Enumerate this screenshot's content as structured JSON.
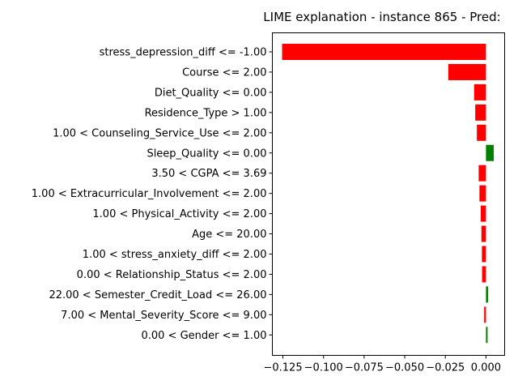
{
  "chart_data": {
    "type": "bar",
    "orientation": "horizontal",
    "title": "LIME explanation - instance 865 - Pred:",
    "xlabel": "",
    "ylabel": "",
    "xlim": [
      -0.1315,
      0.0115
    ],
    "xticks": [
      -0.125,
      -0.1,
      -0.075,
      -0.05,
      -0.025,
      0.0
    ],
    "xtick_labels": [
      "−0.125",
      "−0.100",
      "−0.075",
      "−0.050",
      "−0.025",
      "0.000"
    ],
    "grid": false,
    "colors": {
      "negative": "#ff0000",
      "positive": "#008000"
    },
    "categories": [
      "stress_depression_diff <= -1.00",
      "Course <= 2.00",
      "Diet_Quality <= 0.00",
      "Residence_Type > 1.00",
      "1.00 < Counseling_Service_Use <= 2.00",
      "Sleep_Quality <= 0.00",
      "3.50 < CGPA <= 3.69",
      "1.00 < Extracurricular_Involvement <= 2.00",
      "1.00 < Physical_Activity <= 2.00",
      "Age <= 20.00",
      "1.00 < stress_anxiety_diff <= 2.00",
      "0.00 < Relationship_Status <= 2.00",
      "22.00 < Semester_Credit_Load <= 26.00",
      "7.00 < Mental_Severity_Score <= 9.00",
      "0.00 < Gender <= 1.00"
    ],
    "values": [
      -0.1255,
      -0.0232,
      -0.0073,
      -0.0066,
      -0.0056,
      0.0048,
      -0.0045,
      -0.004,
      -0.0032,
      -0.0028,
      -0.0025,
      -0.0024,
      0.0013,
      -0.0011,
      0.001
    ]
  }
}
